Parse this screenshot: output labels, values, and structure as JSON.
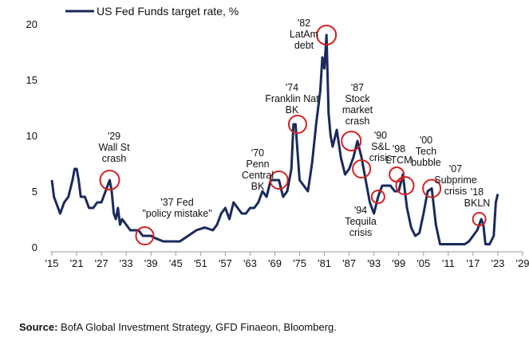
{
  "chart_data": {
    "type": "line",
    "legend": "US Fed Funds target rate, %",
    "legend_position": "top-left",
    "grid": false,
    "xlim": [
      1915,
      2029
    ],
    "ylim": [
      0,
      20
    ],
    "x_ticks": [
      "'15",
      "'21",
      "'27",
      "'33",
      "'39",
      "'45",
      "'51",
      "'57",
      "'63",
      "'69",
      "'75",
      "'81",
      "'87",
      "'93",
      "'99",
      "'05",
      "'11",
      "'17",
      "'23",
      "'29"
    ],
    "x_tick_values": [
      1915,
      1921,
      1927,
      1933,
      1939,
      1945,
      1951,
      1957,
      1963,
      1969,
      1975,
      1981,
      1987,
      1993,
      1999,
      2005,
      2011,
      2017,
      2023,
      2029
    ],
    "y_ticks": [
      "0",
      "5",
      "10",
      "15",
      "20"
    ],
    "y_tick_values": [
      0,
      5,
      10,
      15,
      20
    ],
    "color": "#1b2a5c",
    "highlight_color": "#d42020",
    "series": [
      {
        "name": "US Fed Funds target rate, %",
        "x": [
          1915,
          1915.5,
          1916,
          1917,
          1918,
          1919,
          1920,
          1920.5,
          1921,
          1921.5,
          1922,
          1923,
          1924,
          1925,
          1926,
          1927,
          1928,
          1929,
          1929.5,
          1930,
          1930.5,
          1931,
          1931.5,
          1932,
          1933,
          1934,
          1935,
          1936,
          1937,
          1938,
          1939,
          1940,
          1942,
          1946,
          1948,
          1950,
          1952,
          1954,
          1955,
          1956,
          1957,
          1958,
          1959,
          1960,
          1961,
          1962,
          1963,
          1964,
          1965,
          1966,
          1967,
          1968,
          1969,
          1970,
          1971,
          1972,
          1973,
          1973.5,
          1974,
          1975,
          1976,
          1977,
          1978,
          1979,
          1980,
          1980.5,
          1981,
          1981.5,
          1982,
          1982.5,
          1983,
          1984,
          1985,
          1986,
          1987,
          1988,
          1989,
          1990,
          1991,
          1992,
          1993,
          1994,
          1995,
          1996,
          1997,
          1998,
          1999,
          2000,
          2001,
          2002,
          2003,
          2004,
          2005,
          2006,
          2007,
          2008,
          2009,
          2015,
          2016,
          2017,
          2018,
          2019,
          2019.5,
          2020,
          2021,
          2022,
          2022.5,
          2023
        ],
        "values": [
          6,
          4.5,
          4,
          3,
          4,
          4.5,
          6,
          7,
          7,
          6,
          4.5,
          4.5,
          3.5,
          3.5,
          4,
          4,
          5,
          6,
          5,
          3,
          2.5,
          3.5,
          2,
          2.5,
          2,
          1.5,
          1.5,
          1.5,
          1,
          1,
          1,
          0.8,
          0.5,
          0.5,
          1,
          1.5,
          1.75,
          1.5,
          2,
          3,
          3.5,
          2.5,
          4,
          3.5,
          3,
          3,
          3.5,
          3.5,
          4,
          5,
          4.5,
          6,
          6,
          6,
          4.5,
          5,
          7,
          11,
          11,
          6,
          5.5,
          5,
          7.5,
          11,
          14,
          17,
          16,
          19,
          12,
          10,
          9,
          10.5,
          8,
          6.5,
          7,
          8,
          9.5,
          8,
          6,
          4,
          3,
          4.5,
          5.5,
          5.5,
          5.5,
          5,
          5,
          6.5,
          3.5,
          1.75,
          1,
          1.25,
          3,
          5,
          5.25,
          2,
          0.25,
          0.25,
          0.5,
          1,
          1.5,
          2.5,
          2,
          0.25,
          0.25,
          1,
          4,
          4.75
        ]
      }
    ],
    "annotations": [
      {
        "label": [
          "'29",
          "Wall St",
          "crash"
        ],
        "x": 1929,
        "y": 6
      },
      {
        "label": [
          "'37 Fed",
          "\"policy mistake\""
        ],
        "x": 1937.5,
        "y": 1
      },
      {
        "label": [
          "'70",
          "Penn",
          "Central",
          "BK"
        ],
        "x": 1970,
        "y": 6
      },
      {
        "label": [
          "'74",
          "Franklin Nat",
          "BK"
        ],
        "x": 1974.5,
        "y": 11
      },
      {
        "label": [
          "'82",
          "LatAm",
          "debt"
        ],
        "x": 1981.5,
        "y": 19
      },
      {
        "label": [
          "'87",
          "Stock",
          "market",
          "crash"
        ],
        "x": 1987.5,
        "y": 9.5
      },
      {
        "label": [
          "'90",
          "S&L",
          "crisis"
        ],
        "x": 1990,
        "y": 7
      },
      {
        "label": [
          "'94",
          "Tequila",
          "crisis"
        ],
        "x": 1994,
        "y": 4.5
      },
      {
        "label": [
          "'98",
          "LTCM"
        ],
        "x": 1998.5,
        "y": 6.5
      },
      {
        "label": [
          "'00",
          "Tech",
          "bubble"
        ],
        "x": 2000.5,
        "y": 5.5
      },
      {
        "label": [
          "'07",
          "Subprime",
          "crisis"
        ],
        "x": 2007,
        "y": 5.25
      },
      {
        "label": [
          "'18",
          "BKLN"
        ],
        "x": 2018.5,
        "y": 2.5
      }
    ]
  },
  "source": {
    "label": "Source:",
    "text": " BofA Global Investment Strategy, GFD Finaeon, Bloomberg."
  }
}
